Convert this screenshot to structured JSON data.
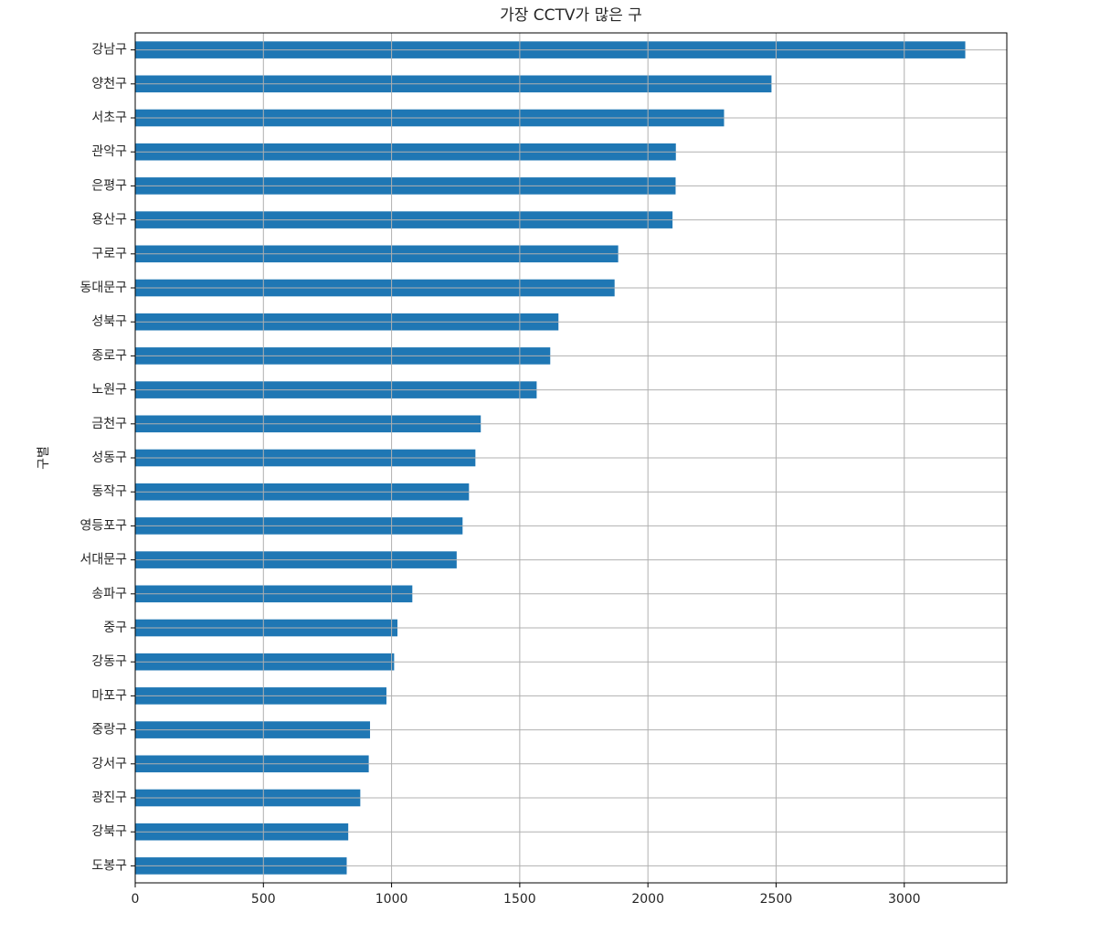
{
  "chart_data": {
    "type": "barh",
    "title": "가장 CCTV가 많은 구",
    "ylabel": "구별",
    "categories": [
      "강남구",
      "양천구",
      "서초구",
      "관악구",
      "은평구",
      "용산구",
      "구로구",
      "동대문구",
      "성북구",
      "종로구",
      "노원구",
      "금천구",
      "성동구",
      "동작구",
      "영등포구",
      "서대문구",
      "송파구",
      "중구",
      "강동구",
      "마포구",
      "중랑구",
      "강서구",
      "광진구",
      "강북구",
      "도봉구"
    ],
    "values": [
      3238,
      2482,
      2297,
      2109,
      2108,
      2096,
      1884,
      1870,
      1651,
      1619,
      1566,
      1348,
      1327,
      1302,
      1277,
      1254,
      1081,
      1023,
      1010,
      980,
      916,
      911,
      878,
      831,
      825
    ],
    "color": "#1f77b4",
    "xlim": [
      0,
      3400
    ],
    "xticks": [
      0,
      500,
      1000,
      1500,
      2000,
      2500,
      3000
    ],
    "grid": true
  }
}
